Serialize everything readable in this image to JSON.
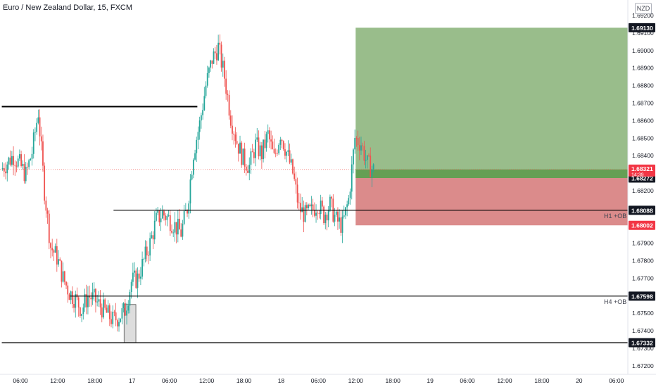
{
  "header": {
    "title": "Euro / New Zealand Dollar, 15, FXCM",
    "currency": "NZD"
  },
  "chart_data": {
    "type": "candlestick",
    "title": "Euro / New Zealand Dollar, 15, FXCM",
    "ylim": [
      1.672,
      1.6925
    ],
    "y_ticks": [
      "1.69200",
      "1.69100",
      "1.69000",
      "1.68900",
      "1.68800",
      "1.68700",
      "1.68600",
      "1.68500",
      "1.68400",
      "1.68300",
      "1.68200",
      "1.68000",
      "1.67900",
      "1.67800",
      "1.67700",
      "1.67500",
      "1.67400",
      "1.67300",
      "1.67200"
    ],
    "x_ticks": [
      {
        "label": "06:00",
        "t": 0
      },
      {
        "label": "12:00",
        "t": 6
      },
      {
        "label": "18:00",
        "t": 12
      },
      {
        "label": "17",
        "t": 18
      },
      {
        "label": "06:00",
        "t": 24
      },
      {
        "label": "12:00",
        "t": 30
      },
      {
        "label": "18:00",
        "t": 36
      },
      {
        "label": "18",
        "t": 42
      },
      {
        "label": "06:00",
        "t": 48
      },
      {
        "label": "12:00",
        "t": 54
      },
      {
        "label": "18:00",
        "t": 60
      },
      {
        "label": "19",
        "t": 66
      },
      {
        "label": "06:00",
        "t": 72
      },
      {
        "label": "12:00",
        "t": 78
      },
      {
        "label": "18:00",
        "t": 84
      },
      {
        "label": "20",
        "t": 90
      },
      {
        "label": "06:00",
        "t": 96
      }
    ],
    "price_path": [
      [
        -3,
        1.6832
      ],
      [
        -2,
        1.6836
      ],
      [
        -1,
        1.684
      ],
      [
        0,
        1.6835
      ],
      [
        1,
        1.6829
      ],
      [
        2,
        1.6842
      ],
      [
        3,
        1.6865
      ],
      [
        4,
        1.682
      ],
      [
        5,
        1.6788
      ],
      [
        6,
        1.6782
      ],
      [
        7,
        1.677
      ],
      [
        8,
        1.6762
      ],
      [
        9,
        1.6758
      ],
      [
        10,
        1.6752
      ],
      [
        11,
        1.676
      ],
      [
        12,
        1.6758
      ],
      [
        13,
        1.6754
      ],
      [
        14,
        1.675
      ],
      [
        15,
        1.6746
      ],
      [
        16,
        1.6748
      ],
      [
        17,
        1.6752
      ],
      [
        18,
        1.6768
      ],
      [
        19,
        1.677
      ],
      [
        20,
        1.678
      ],
      [
        21,
        1.679
      ],
      [
        22,
        1.6803
      ],
      [
        23,
        1.6807
      ],
      [
        24,
        1.6804
      ],
      [
        25,
        1.68
      ],
      [
        26,
        1.6796
      ],
      [
        27,
        1.681
      ],
      [
        28,
        1.6842
      ],
      [
        29,
        1.6858
      ],
      [
        30,
        1.688
      ],
      [
        31,
        1.6895
      ],
      [
        32,
        1.6902
      ],
      [
        33,
        1.6885
      ],
      [
        34,
        1.6862
      ],
      [
        35,
        1.6848
      ],
      [
        36,
        1.6838
      ],
      [
        37,
        1.6834
      ],
      [
        38,
        1.6846
      ],
      [
        39,
        1.6841
      ],
      [
        40,
        1.6852
      ],
      [
        41,
        1.6838
      ],
      [
        42,
        1.6853
      ],
      [
        43,
        1.6842
      ],
      [
        44,
        1.683
      ],
      [
        45,
        1.681
      ],
      [
        46,
        1.6806
      ],
      [
        47,
        1.6808
      ],
      [
        48,
        1.6813
      ],
      [
        49,
        1.6806
      ],
      [
        50,
        1.6812
      ],
      [
        51,
        1.6803
      ],
      [
        52,
        1.68
      ],
      [
        53,
        1.6815
      ],
      [
        54,
        1.685
      ],
      [
        55,
        1.6847
      ],
      [
        56,
        1.6835
      ],
      [
        57,
        1.6832
      ]
    ],
    "current_price": "1.68321",
    "countdown": "14:39",
    "levels": [
      {
        "price": 1.6868,
        "from": -3,
        "to": 28.5,
        "label": ""
      },
      {
        "price": 1.68088,
        "from": 15,
        "to": 100,
        "label": "H1 +OB",
        "tag": "1.68088"
      },
      {
        "price": 1.67598,
        "from": 8,
        "to": 100,
        "label": "H4 +OB",
        "tag": "1.67598"
      },
      {
        "price": 1.67332,
        "from": -3,
        "to": 100,
        "label": "",
        "tag": "1.67332"
      }
    ],
    "ob_box": {
      "x_from": 16.7,
      "x_to": 18.6,
      "price_high": 1.6755,
      "price_low": 1.67332
    },
    "position": {
      "x_from": 54.0,
      "x_to": 100,
      "target": 1.6913,
      "entry": 1.68272,
      "stop": 1.68002,
      "target_tag": "1.69130",
      "entry_tag": "1.68272",
      "stop_tag": "1.68002",
      "profit_color": "#93b985",
      "loss_color": "#d98585"
    },
    "colors": {
      "up": "#26a69a",
      "down": "#ef5350",
      "level": "#000000",
      "current": "#ef5350"
    }
  }
}
